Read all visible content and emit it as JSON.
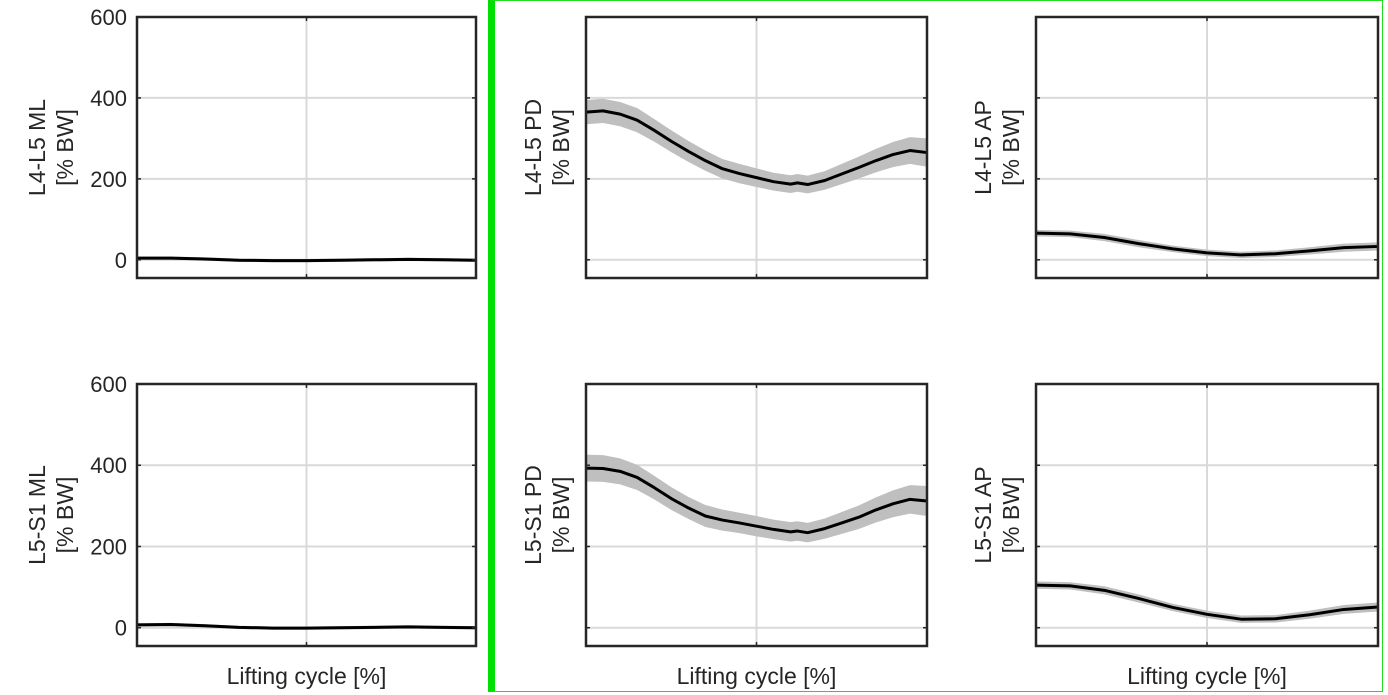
{
  "figure": {
    "highlight_color": "#00e000",
    "band_color": "#bfbfbf",
    "line_color": "#000000",
    "grid_color": "#d9d9d9"
  },
  "chart_data": [
    {
      "id": "l4l5-ml",
      "type": "line",
      "ylabel_line1": "L4-L5 ML",
      "ylabel_line2": "[% BW]",
      "xlabel": "",
      "ylim": [
        -45,
        600
      ],
      "yticks": [
        0,
        200,
        400,
        600
      ],
      "show_ytick_labels": true,
      "xlim": [
        0,
        100
      ],
      "xticks": [
        50
      ],
      "grid": true,
      "x": [
        0,
        10,
        20,
        30,
        40,
        50,
        60,
        70,
        80,
        90,
        100
      ],
      "mean": [
        4,
        4,
        2,
        -1,
        -2,
        -2,
        -1,
        0,
        1,
        0,
        -1
      ],
      "sd": [
        4,
        4,
        4,
        4,
        4,
        4,
        4,
        4,
        4,
        4,
        4
      ]
    },
    {
      "id": "l4l5-pd",
      "type": "line",
      "ylabel_line1": "L4-L5 PD",
      "ylabel_line2": "[% BW]",
      "xlabel": "",
      "ylim": [
        -45,
        600
      ],
      "yticks": [
        0,
        200,
        400,
        600
      ],
      "show_ytick_labels": false,
      "xlim": [
        0,
        100
      ],
      "xticks": [
        50
      ],
      "grid": true,
      "x": [
        0,
        5,
        10,
        15,
        20,
        25,
        30,
        35,
        40,
        45,
        50,
        55,
        60,
        62,
        65,
        70,
        75,
        80,
        85,
        90,
        95,
        100
      ],
      "mean": [
        365,
        368,
        360,
        345,
        320,
        293,
        268,
        245,
        225,
        213,
        203,
        193,
        187,
        190,
        186,
        196,
        212,
        228,
        245,
        260,
        270,
        265
      ],
      "sd": [
        30,
        30,
        30,
        30,
        28,
        27,
        26,
        25,
        24,
        24,
        23,
        22,
        22,
        22,
        22,
        23,
        25,
        27,
        29,
        31,
        33,
        35
      ]
    },
    {
      "id": "l4l5-ap",
      "type": "line",
      "ylabel_line1": "L4-L5 AP",
      "ylabel_line2": "[% BW]",
      "xlabel": "",
      "ylim": [
        -45,
        600
      ],
      "yticks": [
        0,
        200,
        400,
        600
      ],
      "show_ytick_labels": false,
      "xlim": [
        0,
        100
      ],
      "xticks": [
        50
      ],
      "grid": true,
      "x": [
        0,
        10,
        20,
        30,
        40,
        50,
        60,
        70,
        80,
        90,
        100
      ],
      "mean": [
        66,
        64,
        55,
        40,
        27,
        17,
        12,
        15,
        22,
        30,
        33
      ],
      "sd": [
        8,
        8,
        9,
        9,
        8,
        8,
        8,
        8,
        9,
        10,
        10
      ]
    },
    {
      "id": "l5s1-ml",
      "type": "line",
      "ylabel_line1": "L5-S1 ML",
      "ylabel_line2": "[% BW]",
      "xlabel": "Lifting cycle [%]",
      "ylim": [
        -45,
        600
      ],
      "yticks": [
        0,
        200,
        400,
        600
      ],
      "show_ytick_labels": true,
      "xlim": [
        0,
        100
      ],
      "xticks": [
        50
      ],
      "grid": true,
      "x": [
        0,
        10,
        20,
        30,
        40,
        50,
        60,
        70,
        80,
        90,
        100
      ],
      "mean": [
        7,
        8,
        5,
        1,
        -1,
        -1,
        0,
        1,
        2,
        1,
        0
      ],
      "sd": [
        4,
        4,
        4,
        4,
        4,
        4,
        4,
        4,
        4,
        4,
        4
      ]
    },
    {
      "id": "l5s1-pd",
      "type": "line",
      "ylabel_line1": "L5-S1 PD",
      "ylabel_line2": "[% BW]",
      "xlabel": "Lifting cycle [%]",
      "ylim": [
        -45,
        600
      ],
      "yticks": [
        0,
        200,
        400,
        600
      ],
      "show_ytick_labels": false,
      "xlim": [
        0,
        100
      ],
      "xticks": [
        50
      ],
      "grid": true,
      "x": [
        0,
        5,
        10,
        15,
        20,
        25,
        30,
        35,
        40,
        45,
        50,
        55,
        60,
        62,
        65,
        70,
        75,
        80,
        85,
        90,
        95,
        100
      ],
      "mean": [
        393,
        392,
        385,
        370,
        345,
        318,
        295,
        275,
        265,
        258,
        250,
        242,
        236,
        238,
        234,
        244,
        258,
        272,
        290,
        305,
        316,
        312
      ],
      "sd": [
        33,
        33,
        32,
        31,
        29,
        28,
        27,
        27,
        26,
        25,
        25,
        24,
        24,
        24,
        24,
        25,
        27,
        29,
        31,
        33,
        35,
        37
      ]
    },
    {
      "id": "l5s1-ap",
      "type": "line",
      "ylabel_line1": "L5-S1 AP",
      "ylabel_line2": "[% BW]",
      "xlabel": "Lifting cycle [%]",
      "ylim": [
        -45,
        600
      ],
      "yticks": [
        0,
        200,
        400,
        600
      ],
      "show_ytick_labels": false,
      "xlim": [
        0,
        100
      ],
      "xticks": [
        50
      ],
      "grid": true,
      "x": [
        0,
        10,
        20,
        30,
        40,
        50,
        60,
        70,
        80,
        90,
        100
      ],
      "mean": [
        105,
        103,
        92,
        72,
        50,
        33,
        21,
        22,
        32,
        45,
        51
      ],
      "sd": [
        9,
        9,
        10,
        10,
        9,
        9,
        9,
        9,
        10,
        11,
        11
      ]
    }
  ]
}
